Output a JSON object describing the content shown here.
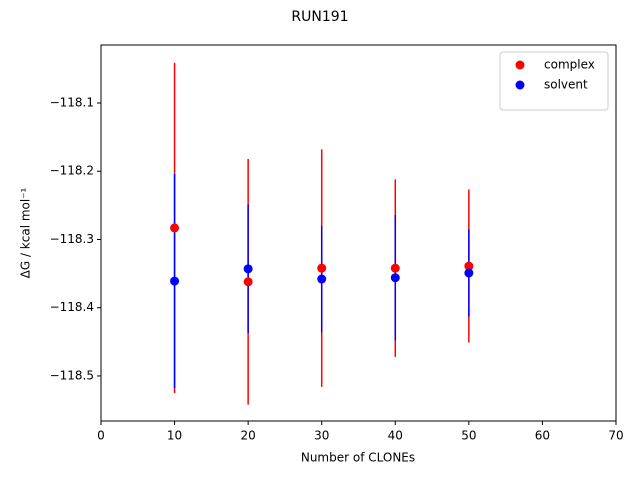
{
  "chart_data": {
    "type": "errorbar-scatter",
    "title": "RUN191",
    "x_label": "Number of CLONEs",
    "y_label": "ΔG / kcal mol⁻¹",
    "x": [
      10,
      20,
      30,
      40,
      50
    ],
    "series": [
      {
        "name": "complex",
        "color": "#ff0000",
        "values": [
          -118.283,
          -118.362,
          -118.342,
          -118.342,
          -118.339
        ],
        "errors": [
          0.242,
          0.18,
          0.174,
          0.13,
          0.112
        ]
      },
      {
        "name": "solvent",
        "color": "#0000ff",
        "values": [
          -118.361,
          -118.343,
          -118.358,
          -118.356,
          -118.349
        ],
        "errors": [
          0.157,
          0.094,
          0.078,
          0.092,
          0.064
        ]
      }
    ],
    "xlim": [
      0,
      70
    ],
    "xticks": [
      0,
      10,
      20,
      30,
      40,
      50,
      60,
      70
    ],
    "ylim": [
      -118.566,
      -118.015
    ],
    "yticks": [
      {
        "value": -118.5,
        "label": "−118.5"
      },
      {
        "value": -118.4,
        "label": "−118.4"
      },
      {
        "value": -118.3,
        "label": "−118.3"
      },
      {
        "value": -118.2,
        "label": "−118.2"
      },
      {
        "value": -118.1,
        "label": "−118.1"
      }
    ],
    "legend": "upper right"
  }
}
